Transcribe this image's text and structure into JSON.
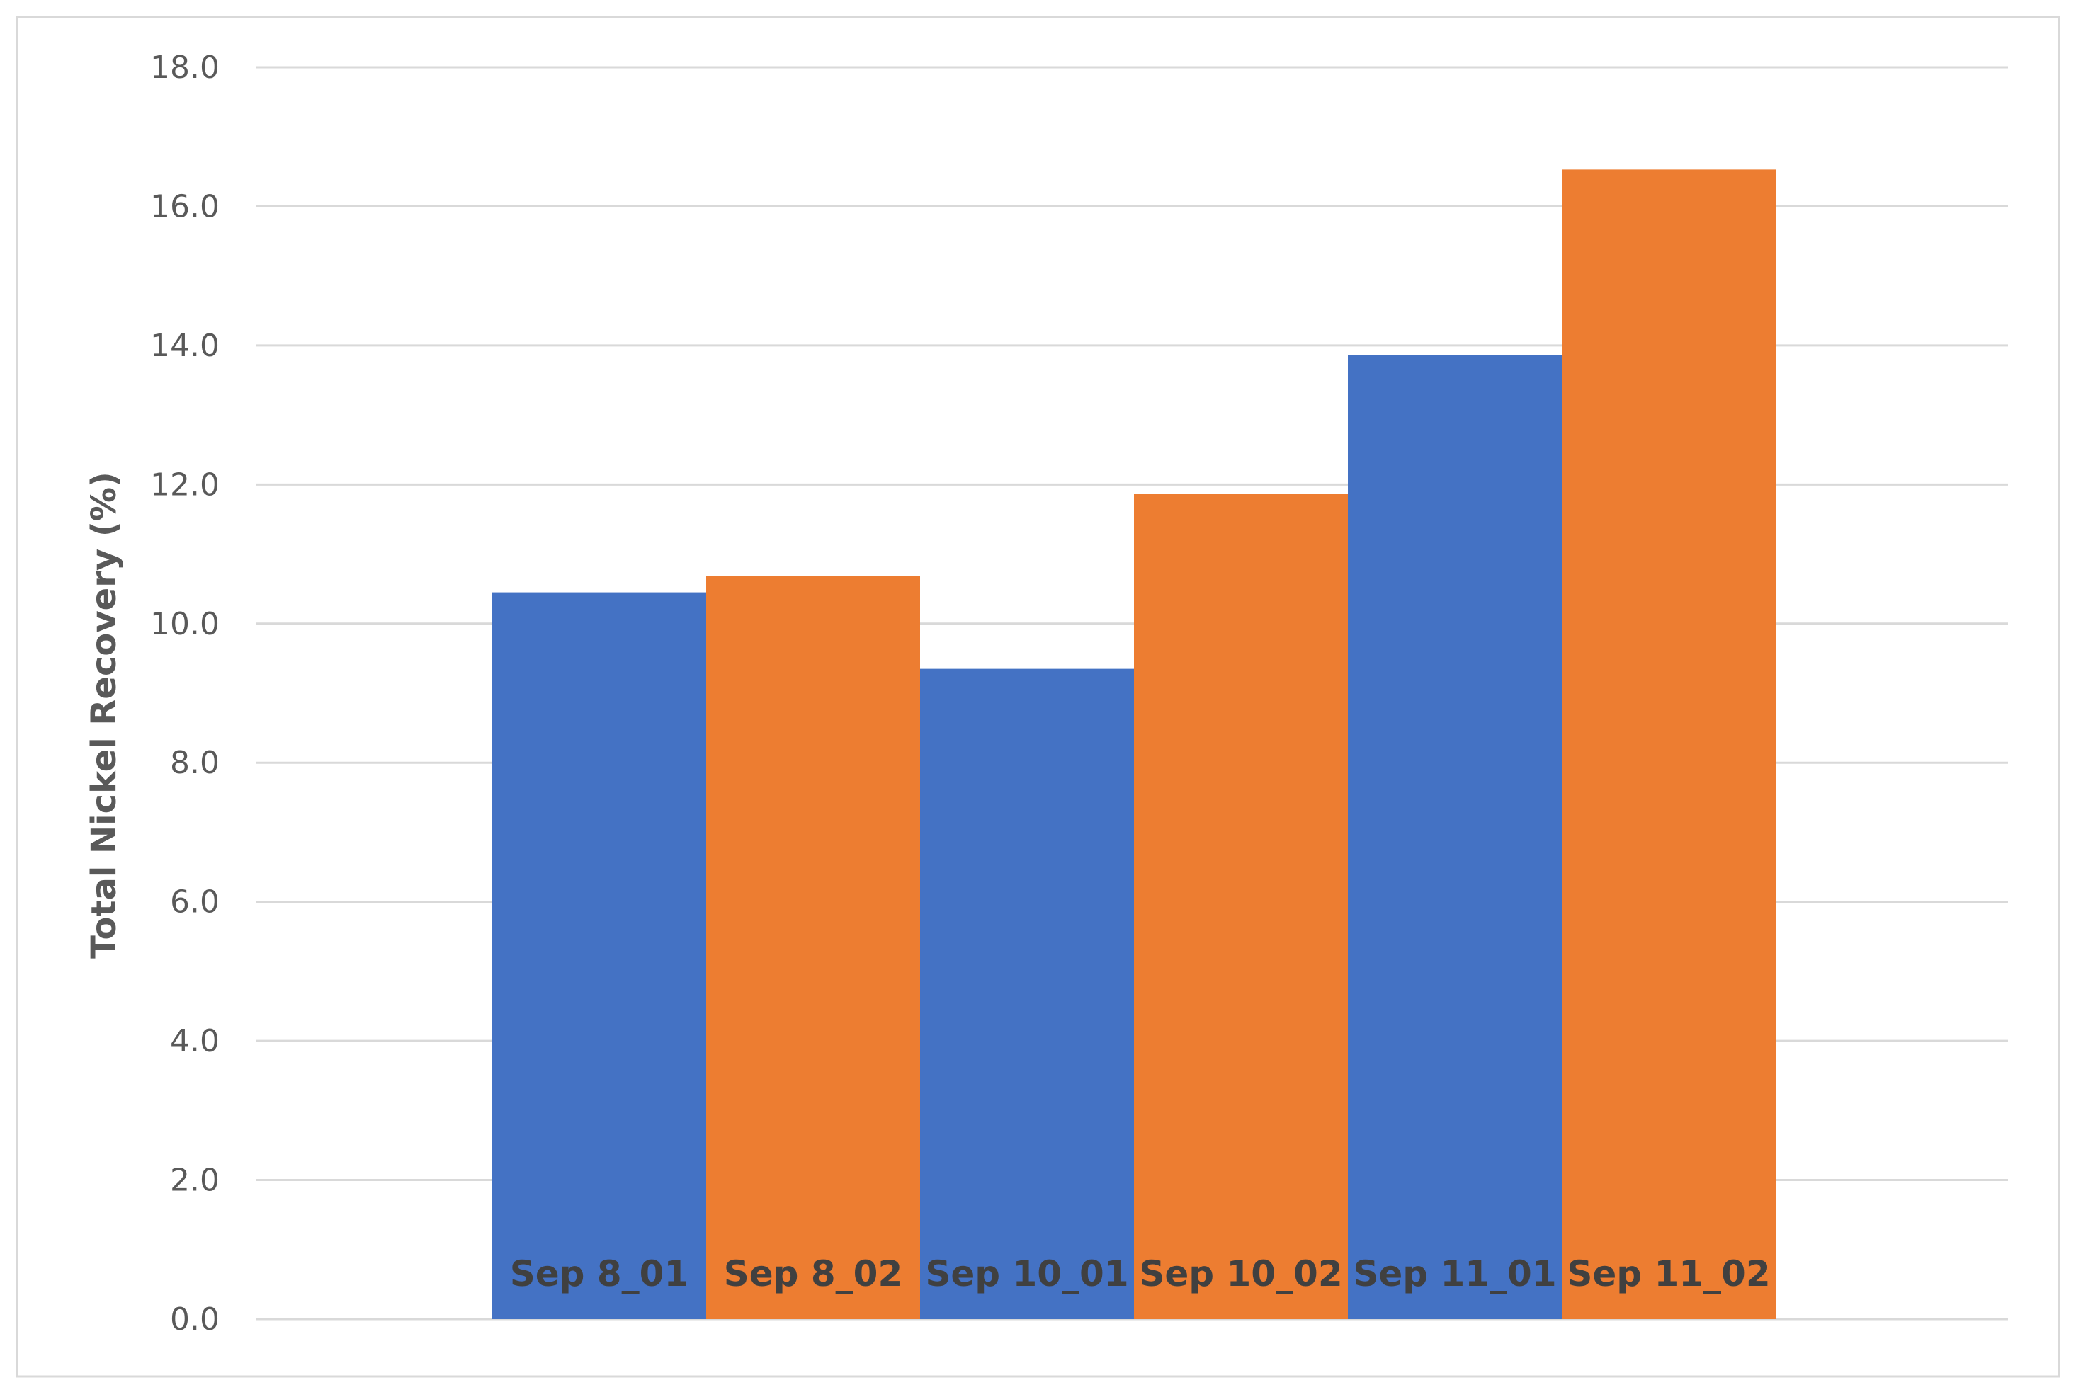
{
  "chart_data": {
    "type": "bar",
    "categories": [
      "Sep 8_01",
      "Sep 8_02",
      "Sep 10_01",
      "Sep 10_02",
      "Sep 11_01",
      "Sep 11_02"
    ],
    "values": [
      10.45,
      10.68,
      9.35,
      11.87,
      13.86,
      16.53
    ],
    "bar_colors": [
      "#4472C4",
      "#ED7D31",
      "#4472C4",
      "#ED7D31",
      "#4472C4",
      "#ED7D31"
    ],
    "title": "",
    "xlabel": "",
    "ylabel": "Total Nickel Recovery (%)",
    "ylim": [
      0,
      18
    ],
    "yticks": [
      "0.0",
      "2.0",
      "4.0",
      "6.0",
      "8.0",
      "10.0",
      "12.0",
      "14.0",
      "16.0",
      "18.0"
    ],
    "grid": true,
    "gridline_color": "#D9D9D9",
    "tick_label_color": "#595959",
    "bar_label_color": "#404040"
  }
}
